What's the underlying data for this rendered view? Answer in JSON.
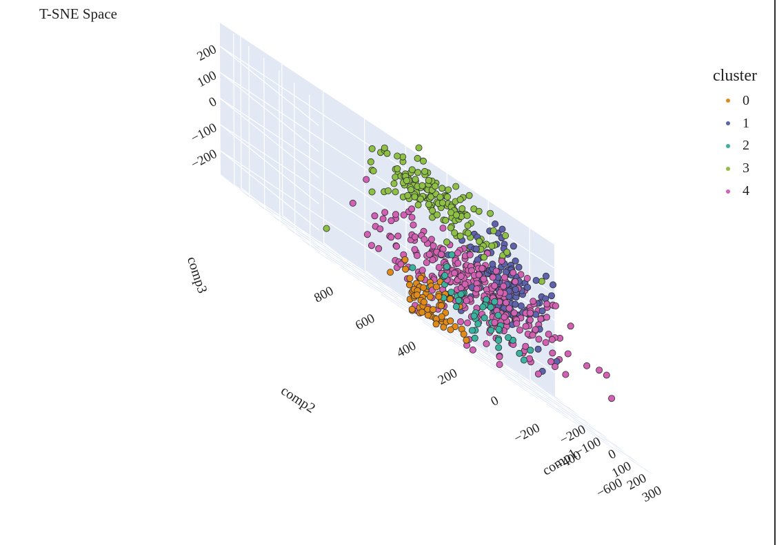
{
  "chart": {
    "title": "T-SNE Space"
  },
  "legend": {
    "title": "cluster",
    "items": [
      {
        "label": "0",
        "color": "#e08a1a"
      },
      {
        "label": "1",
        "color": "#5f63ad"
      },
      {
        "label": "2",
        "color": "#3bb2a0"
      },
      {
        "label": "3",
        "color": "#8dc044"
      },
      {
        "label": "4",
        "color": "#d261b3"
      }
    ]
  },
  "chart_data": {
    "type": "scatter",
    "title": "T-SNE Space",
    "scene": "3d",
    "grid": true,
    "legend_position": "top-right",
    "axes": {
      "x": {
        "label": "comp1",
        "ticks": [
          -200,
          -100,
          0,
          100,
          200,
          300
        ],
        "range": [
          -290,
          360
        ]
      },
      "y": {
        "label": "comp2",
        "ticks": [
          -600,
          -400,
          -200,
          0,
          200,
          400,
          600,
          800
        ],
        "range": [
          -720,
          900
        ]
      },
      "z": {
        "label": "comp3",
        "ticks": [
          -200,
          -100,
          0,
          100,
          200
        ],
        "range": [
          -290,
          290
        ]
      }
    },
    "series": [
      {
        "name": "0",
        "color": "#e08a1a",
        "center": [
          140,
          200,
          -210
        ],
        "spread": [
          40,
          70,
          45
        ],
        "count": 70
      },
      {
        "name": "1",
        "color": "#5f63ad",
        "center": [
          -70,
          -330,
          20
        ],
        "spread": [
          55,
          90,
          80
        ],
        "count": 150
      },
      {
        "name": "2",
        "color": "#3bb2a0",
        "center": [
          200,
          60,
          -130
        ],
        "spread": [
          90,
          140,
          70
        ],
        "count": 45
      },
      {
        "name": "3",
        "color": "#8dc044",
        "center": [
          -120,
          0,
          170
        ],
        "spread": [
          70,
          140,
          50
        ],
        "count": 150,
        "outliers": [
          [
            -250,
            -380,
            250
          ],
          [
            300,
            820,
            -180
          ]
        ]
      },
      {
        "name": "4",
        "color": "#d261b3",
        "center": [
          40,
          -60,
          -70
        ],
        "spread": [
          90,
          230,
          80
        ],
        "count": 300
      }
    ]
  }
}
